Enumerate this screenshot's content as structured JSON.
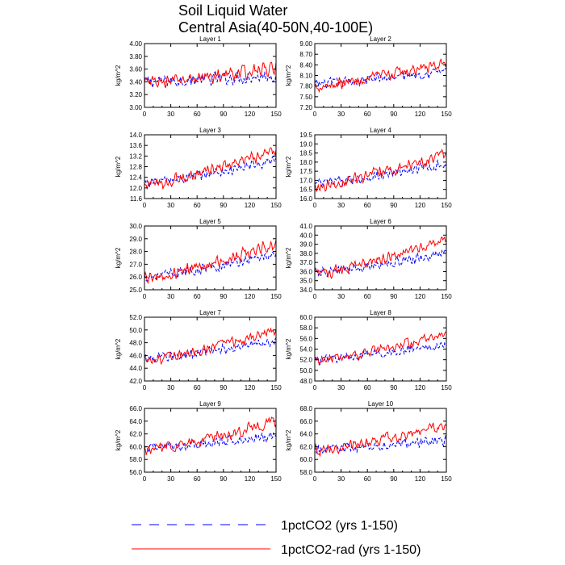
{
  "figure": {
    "title_line1": "Soil Liquid Water",
    "title_line2": "Central Asia(40-50N,40-100E)",
    "legend": [
      {
        "label": "1pctCO2 (yrs 1-150)",
        "color": "#0000ff",
        "dash": true
      },
      {
        "label": "1pctCO2-rad (yrs 1-150)",
        "color": "#ff0000",
        "dash": false
      }
    ]
  },
  "chart_data": [
    {
      "type": "line",
      "title": "Layer 1",
      "ylabel": "kg/m^2",
      "xlim": [
        0,
        150
      ],
      "xticks": [
        0,
        30,
        60,
        90,
        120,
        150
      ],
      "ylim": [
        3.0,
        4.0
      ],
      "yticks": [
        "3.00",
        "3.20",
        "3.40",
        "3.60",
        "3.80",
        "4.00"
      ],
      "series": [
        {
          "name": "1pctCO2 (yrs 1-150)",
          "start": 3.4,
          "end": 3.5,
          "noise": 0.12
        },
        {
          "name": "1pctCO2-rad (yrs 1-150)",
          "start": 3.38,
          "end": 3.62,
          "noise": 0.13
        }
      ]
    },
    {
      "type": "line",
      "title": "Layer 2",
      "ylabel": "kg/m^2",
      "xlim": [
        0,
        150
      ],
      "xticks": [
        0,
        30,
        60,
        90,
        120,
        150
      ],
      "ylim": [
        7.2,
        9.0
      ],
      "yticks": [
        "7.20",
        "7.50",
        "7.80",
        "8.10",
        "8.40",
        "8.70",
        "9.00"
      ],
      "series": [
        {
          "name": "1pctCO2 (yrs 1-150)",
          "start": 7.85,
          "end": 8.25,
          "noise": 0.18
        },
        {
          "name": "1pctCO2-rad (yrs 1-150)",
          "start": 7.8,
          "end": 8.45,
          "noise": 0.2
        }
      ]
    },
    {
      "type": "line",
      "title": "Layer 3",
      "ylabel": "kg/m^2",
      "xlim": [
        0,
        150
      ],
      "xticks": [
        0,
        30,
        60,
        90,
        120,
        150
      ],
      "ylim": [
        11.6,
        14.0
      ],
      "yticks": [
        "11.6",
        "12.0",
        "12.4",
        "12.8",
        "13.2",
        "13.6",
        "14.0"
      ],
      "series": [
        {
          "name": "1pctCO2 (yrs 1-150)",
          "start": 12.2,
          "end": 13.0,
          "noise": 0.25
        },
        {
          "name": "1pctCO2-rad (yrs 1-150)",
          "start": 12.1,
          "end": 13.4,
          "noise": 0.28
        }
      ]
    },
    {
      "type": "line",
      "title": "Layer 4",
      "ylabel": "kg/m^2",
      "xlim": [
        0,
        150
      ],
      "xticks": [
        0,
        30,
        60,
        90,
        120,
        150
      ],
      "ylim": [
        16.0,
        19.5
      ],
      "yticks": [
        "16.0",
        "16.5",
        "17.0",
        "17.5",
        "18.0",
        "18.5",
        "19.0",
        "19.5"
      ],
      "series": [
        {
          "name": "1pctCO2 (yrs 1-150)",
          "start": 16.8,
          "end": 17.9,
          "noise": 0.35
        },
        {
          "name": "1pctCO2-rad (yrs 1-150)",
          "start": 16.7,
          "end": 18.4,
          "noise": 0.4
        }
      ]
    },
    {
      "type": "line",
      "title": "Layer 5",
      "ylabel": "kg/m^2",
      "xlim": [
        0,
        150
      ],
      "xticks": [
        0,
        30,
        60,
        90,
        120,
        150
      ],
      "ylim": [
        25.0,
        30.0
      ],
      "yticks": [
        "25.0",
        "26.0",
        "27.0",
        "28.0",
        "29.0",
        "30.0"
      ],
      "series": [
        {
          "name": "1pctCO2 (yrs 1-150)",
          "start": 26.0,
          "end": 27.8,
          "noise": 0.45
        },
        {
          "name": "1pctCO2-rad (yrs 1-150)",
          "start": 25.9,
          "end": 28.6,
          "noise": 0.55
        }
      ]
    },
    {
      "type": "line",
      "title": "Layer 6",
      "ylabel": "kg/m^2",
      "xlim": [
        0,
        150
      ],
      "xticks": [
        0,
        30,
        60,
        90,
        120,
        150
      ],
      "ylim": [
        34.0,
        41.0
      ],
      "yticks": [
        "34.0",
        "35.0",
        "36.0",
        "37.0",
        "38.0",
        "39.0",
        "40.0",
        "41.0"
      ],
      "series": [
        {
          "name": "1pctCO2 (yrs 1-150)",
          "start": 35.8,
          "end": 38.0,
          "noise": 0.7
        },
        {
          "name": "1pctCO2-rad (yrs 1-150)",
          "start": 35.7,
          "end": 39.5,
          "noise": 0.75
        }
      ]
    },
    {
      "type": "line",
      "title": "Layer 7",
      "ylabel": "kg/m^2",
      "xlim": [
        0,
        150
      ],
      "xticks": [
        0,
        30,
        60,
        90,
        120,
        150
      ],
      "ylim": [
        42.0,
        52.0
      ],
      "yticks": [
        "42.0",
        "44.0",
        "46.0",
        "48.0",
        "50.0",
        "52.0"
      ],
      "series": [
        {
          "name": "1pctCO2 (yrs 1-150)",
          "start": 45.5,
          "end": 48.3,
          "noise": 0.9
        },
        {
          "name": "1pctCO2-rad (yrs 1-150)",
          "start": 45.3,
          "end": 50.0,
          "noise": 1.0
        }
      ]
    },
    {
      "type": "line",
      "title": "Layer 8",
      "ylabel": "kg/m^2",
      "xlim": [
        0,
        150
      ],
      "xticks": [
        0,
        30,
        60,
        90,
        120,
        150
      ],
      "ylim": [
        48.0,
        60.0
      ],
      "yticks": [
        "48.0",
        "50.0",
        "52.0",
        "54.0",
        "56.0",
        "58.0",
        "60.0"
      ],
      "series": [
        {
          "name": "1pctCO2 (yrs 1-150)",
          "start": 52.0,
          "end": 54.8,
          "noise": 1.0
        },
        {
          "name": "1pctCO2-rad (yrs 1-150)",
          "start": 51.8,
          "end": 56.8,
          "noise": 1.1
        }
      ]
    },
    {
      "type": "line",
      "title": "Layer 9",
      "ylabel": "kg/m^2",
      "xlim": [
        0,
        150
      ],
      "xticks": [
        0,
        30,
        60,
        90,
        120,
        150
      ],
      "ylim": [
        56.0,
        66.0
      ],
      "yticks": [
        "56.0",
        "58.0",
        "60.0",
        "62.0",
        "64.0",
        "66.0"
      ],
      "series": [
        {
          "name": "1pctCO2 (yrs 1-150)",
          "start": 59.7,
          "end": 61.8,
          "noise": 1.0
        },
        {
          "name": "1pctCO2-rad (yrs 1-150)",
          "start": 59.5,
          "end": 64.0,
          "noise": 1.1
        }
      ]
    },
    {
      "type": "line",
      "title": "Layer 10",
      "ylabel": "kg/m^2",
      "xlim": [
        0,
        150
      ],
      "xticks": [
        0,
        30,
        60,
        90,
        120,
        150
      ],
      "ylim": [
        58.0,
        68.0
      ],
      "yticks": [
        "58.0",
        "60.0",
        "62.0",
        "64.0",
        "66.0",
        "68.0"
      ],
      "series": [
        {
          "name": "1pctCO2 (yrs 1-150)",
          "start": 61.5,
          "end": 63.0,
          "noise": 1.0
        },
        {
          "name": "1pctCO2-rad (yrs 1-150)",
          "start": 61.3,
          "end": 65.5,
          "noise": 1.1
        }
      ]
    }
  ]
}
